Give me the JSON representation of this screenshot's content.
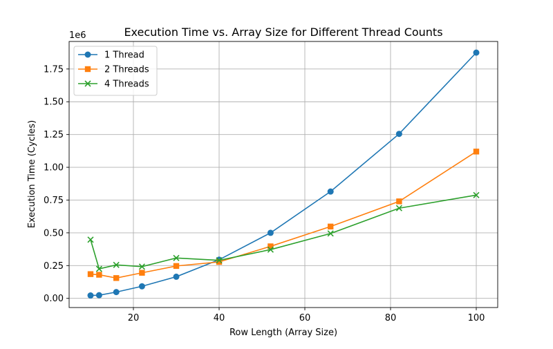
{
  "chart_data": {
    "type": "line",
    "title": "Execution Time vs. Array Size for Different Thread Counts",
    "xlabel": "Row Length (Array Size)",
    "ylabel": "Execution Time (Cycles)",
    "y_offset_text": "1e6",
    "xlim": [
      5,
      105
    ],
    "ylim": [
      -70000,
      1960000
    ],
    "x_ticks": [
      20,
      40,
      60,
      80,
      100
    ],
    "x_tick_labels": [
      "20",
      "40",
      "60",
      "80",
      "100"
    ],
    "y_ticks": [
      0,
      250000,
      500000,
      750000,
      1000000,
      1250000,
      1500000,
      1750000
    ],
    "y_tick_labels": [
      "0.00",
      "0.25",
      "0.50",
      "0.75",
      "1.00",
      "1.25",
      "1.50",
      "1.75"
    ],
    "grid": true,
    "legend_position": "upper-left",
    "x": [
      10,
      12,
      16,
      22,
      30,
      40,
      52,
      66,
      82,
      100
    ],
    "series": [
      {
        "name": "1 Thread",
        "color": "#1f77b4",
        "marker": "circle",
        "values": [
          22000,
          24000,
          48000,
          92000,
          165000,
          295000,
          500000,
          815000,
          1255000,
          1875000
        ]
      },
      {
        "name": "2 Threads",
        "color": "#ff7f0e",
        "marker": "square",
        "values": [
          185000,
          180000,
          155000,
          195000,
          247000,
          278000,
          397000,
          548000,
          740000,
          1120000
        ]
      },
      {
        "name": "4 Threads",
        "color": "#2ca02c",
        "marker": "x",
        "values": [
          448000,
          225000,
          255000,
          242000,
          308000,
          290000,
          372000,
          495000,
          688000,
          788000
        ]
      }
    ]
  }
}
